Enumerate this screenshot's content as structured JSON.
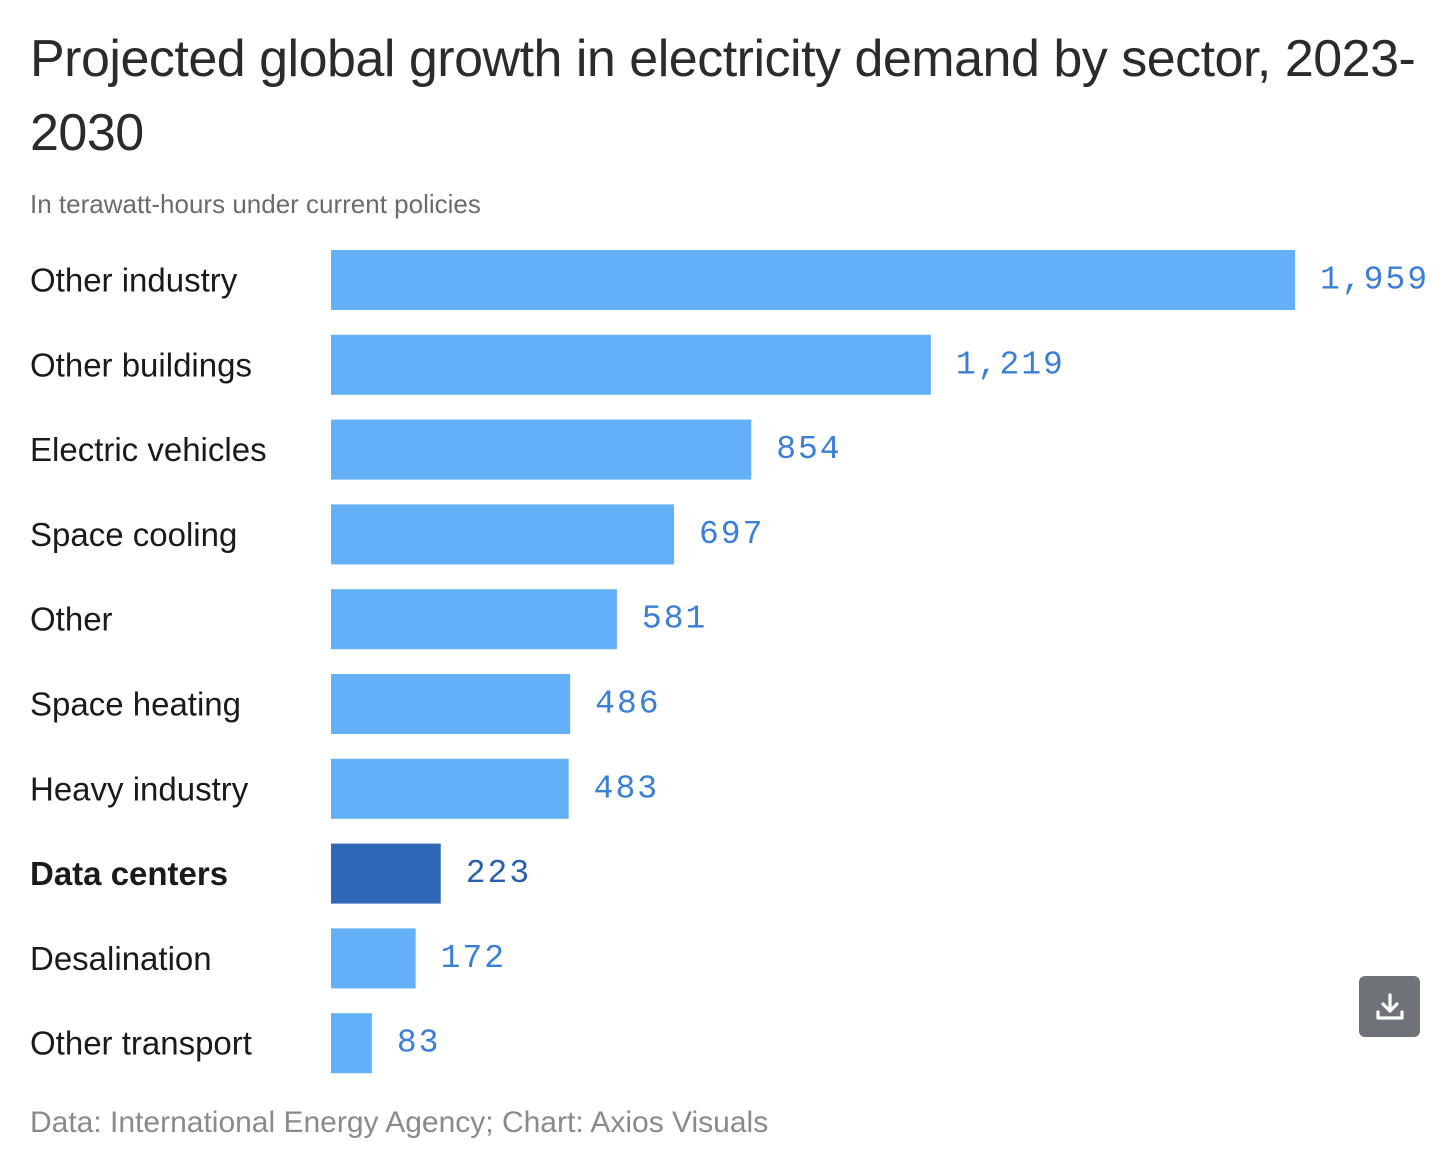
{
  "title": "Projected global growth in electricity demand by sector, 2023-2030",
  "subtitle": "In terawatt-hours under current policies",
  "source": "Data: International Energy Agency; Chart: Axios Visuals",
  "download_icon": "download-icon",
  "colors": {
    "bar": "#63b0f8",
    "highlight_bar": "#2f66b8",
    "value_text": "#3a7fd5",
    "highlight_value_text": "#2a5fae"
  },
  "chart_data": {
    "type": "bar",
    "orientation": "horizontal",
    "title": "Projected global growth in electricity demand by sector, 2023-2030",
    "subtitle": "In terawatt-hours under current policies",
    "categories": [
      "Other industry",
      "Other buildings",
      "Electric vehicles",
      "Space cooling",
      "Other",
      "Space heating",
      "Heavy industry",
      "Data centers",
      "Desalination",
      "Other transport"
    ],
    "values": [
      1959,
      1219,
      854,
      697,
      581,
      486,
      483,
      223,
      172,
      83
    ],
    "value_labels": [
      "1,959",
      "1,219",
      "854",
      "697",
      "581",
      "486",
      "483",
      "223",
      "172",
      "83"
    ],
    "highlight": "Data centers",
    "xlim": [
      0,
      1959
    ],
    "grid": false,
    "legend": "none"
  }
}
